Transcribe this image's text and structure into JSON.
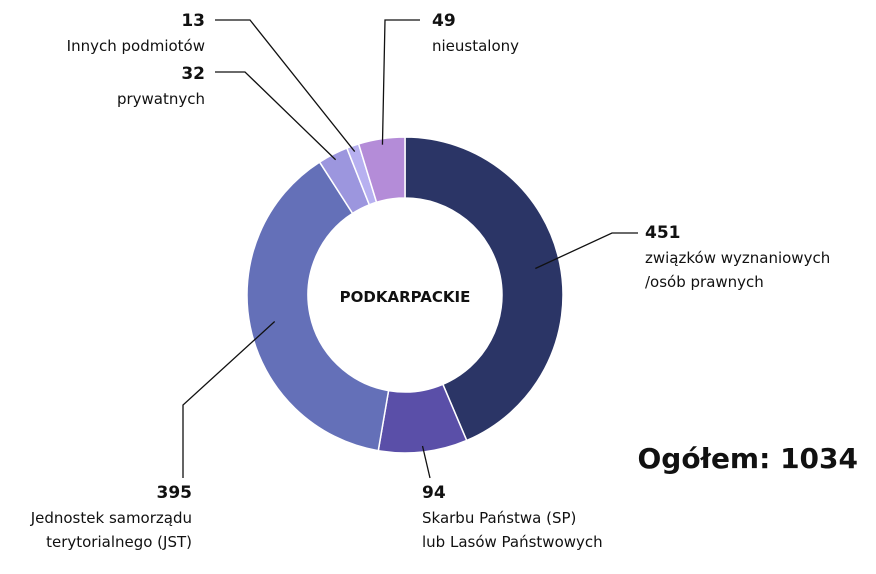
{
  "chart_data": {
    "type": "donut",
    "center_label": "PODKARPACKIE",
    "categories": [
      [
        "związków wyznaniowych",
        "/osób prawnych"
      ],
      [
        "Skarbu Państwa (SP)",
        "lub Lasów Państwowych"
      ],
      [
        "Jednostek samorządu",
        "terytorialnego (JST)"
      ],
      [
        "prywatnych"
      ],
      [
        "Innych podmiotów"
      ],
      [
        "nieustalony"
      ]
    ],
    "values": [
      451,
      94,
      395,
      32,
      13,
      49
    ],
    "colors": [
      "#2b3566",
      "#5a4fa8",
      "#6470b8",
      "#9c96de",
      "#b7b0f0",
      "#b48cd8"
    ],
    "total_label": "Ogółem:",
    "total": 1034
  }
}
